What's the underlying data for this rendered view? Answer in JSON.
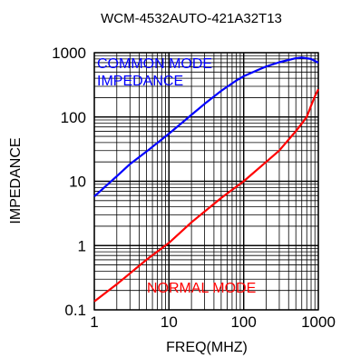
{
  "chart_data": {
    "type": "line",
    "title": "WCM-4532AUTO-421A32T13",
    "xlabel": "FREQ(MHZ)",
    "ylabel": "IMPEDANCE",
    "xscale": "log",
    "yscale": "log",
    "xlim": [
      1,
      1000
    ],
    "ylim": [
      0.1,
      1000
    ],
    "grid": true,
    "x_ticks": [
      "1",
      "10",
      "100",
      "1000"
    ],
    "y_ticks": [
      "0.1",
      "1",
      "10",
      "100",
      "1000"
    ],
    "series": [
      {
        "name": "COMMON MODE IMPEDANCE",
        "color": "#0000ff",
        "label_lines": [
          "COMMON MODE",
          "IMPEDANCE"
        ],
        "x": [
          1,
          2,
          3,
          5,
          10,
          20,
          30,
          50,
          80,
          100,
          150,
          200,
          300,
          500,
          600,
          800,
          1000
        ],
        "y": [
          5.8,
          12,
          18.5,
          29,
          55,
          108,
          160,
          255,
          370,
          430,
          530,
          610,
          710,
          820,
          840,
          800,
          700
        ]
      },
      {
        "name": "NORMAL MODE",
        "color": "#ff0000",
        "label_lines": [
          "NORMAL MODE"
        ],
        "x": [
          1,
          2,
          5,
          10,
          20,
          50,
          100,
          200,
          300,
          500,
          700,
          800,
          900,
          1000
        ],
        "y": [
          0.135,
          0.25,
          0.6,
          1.1,
          2.3,
          5.5,
          10,
          20,
          30,
          60,
          100,
          150,
          210,
          270
        ]
      }
    ]
  }
}
